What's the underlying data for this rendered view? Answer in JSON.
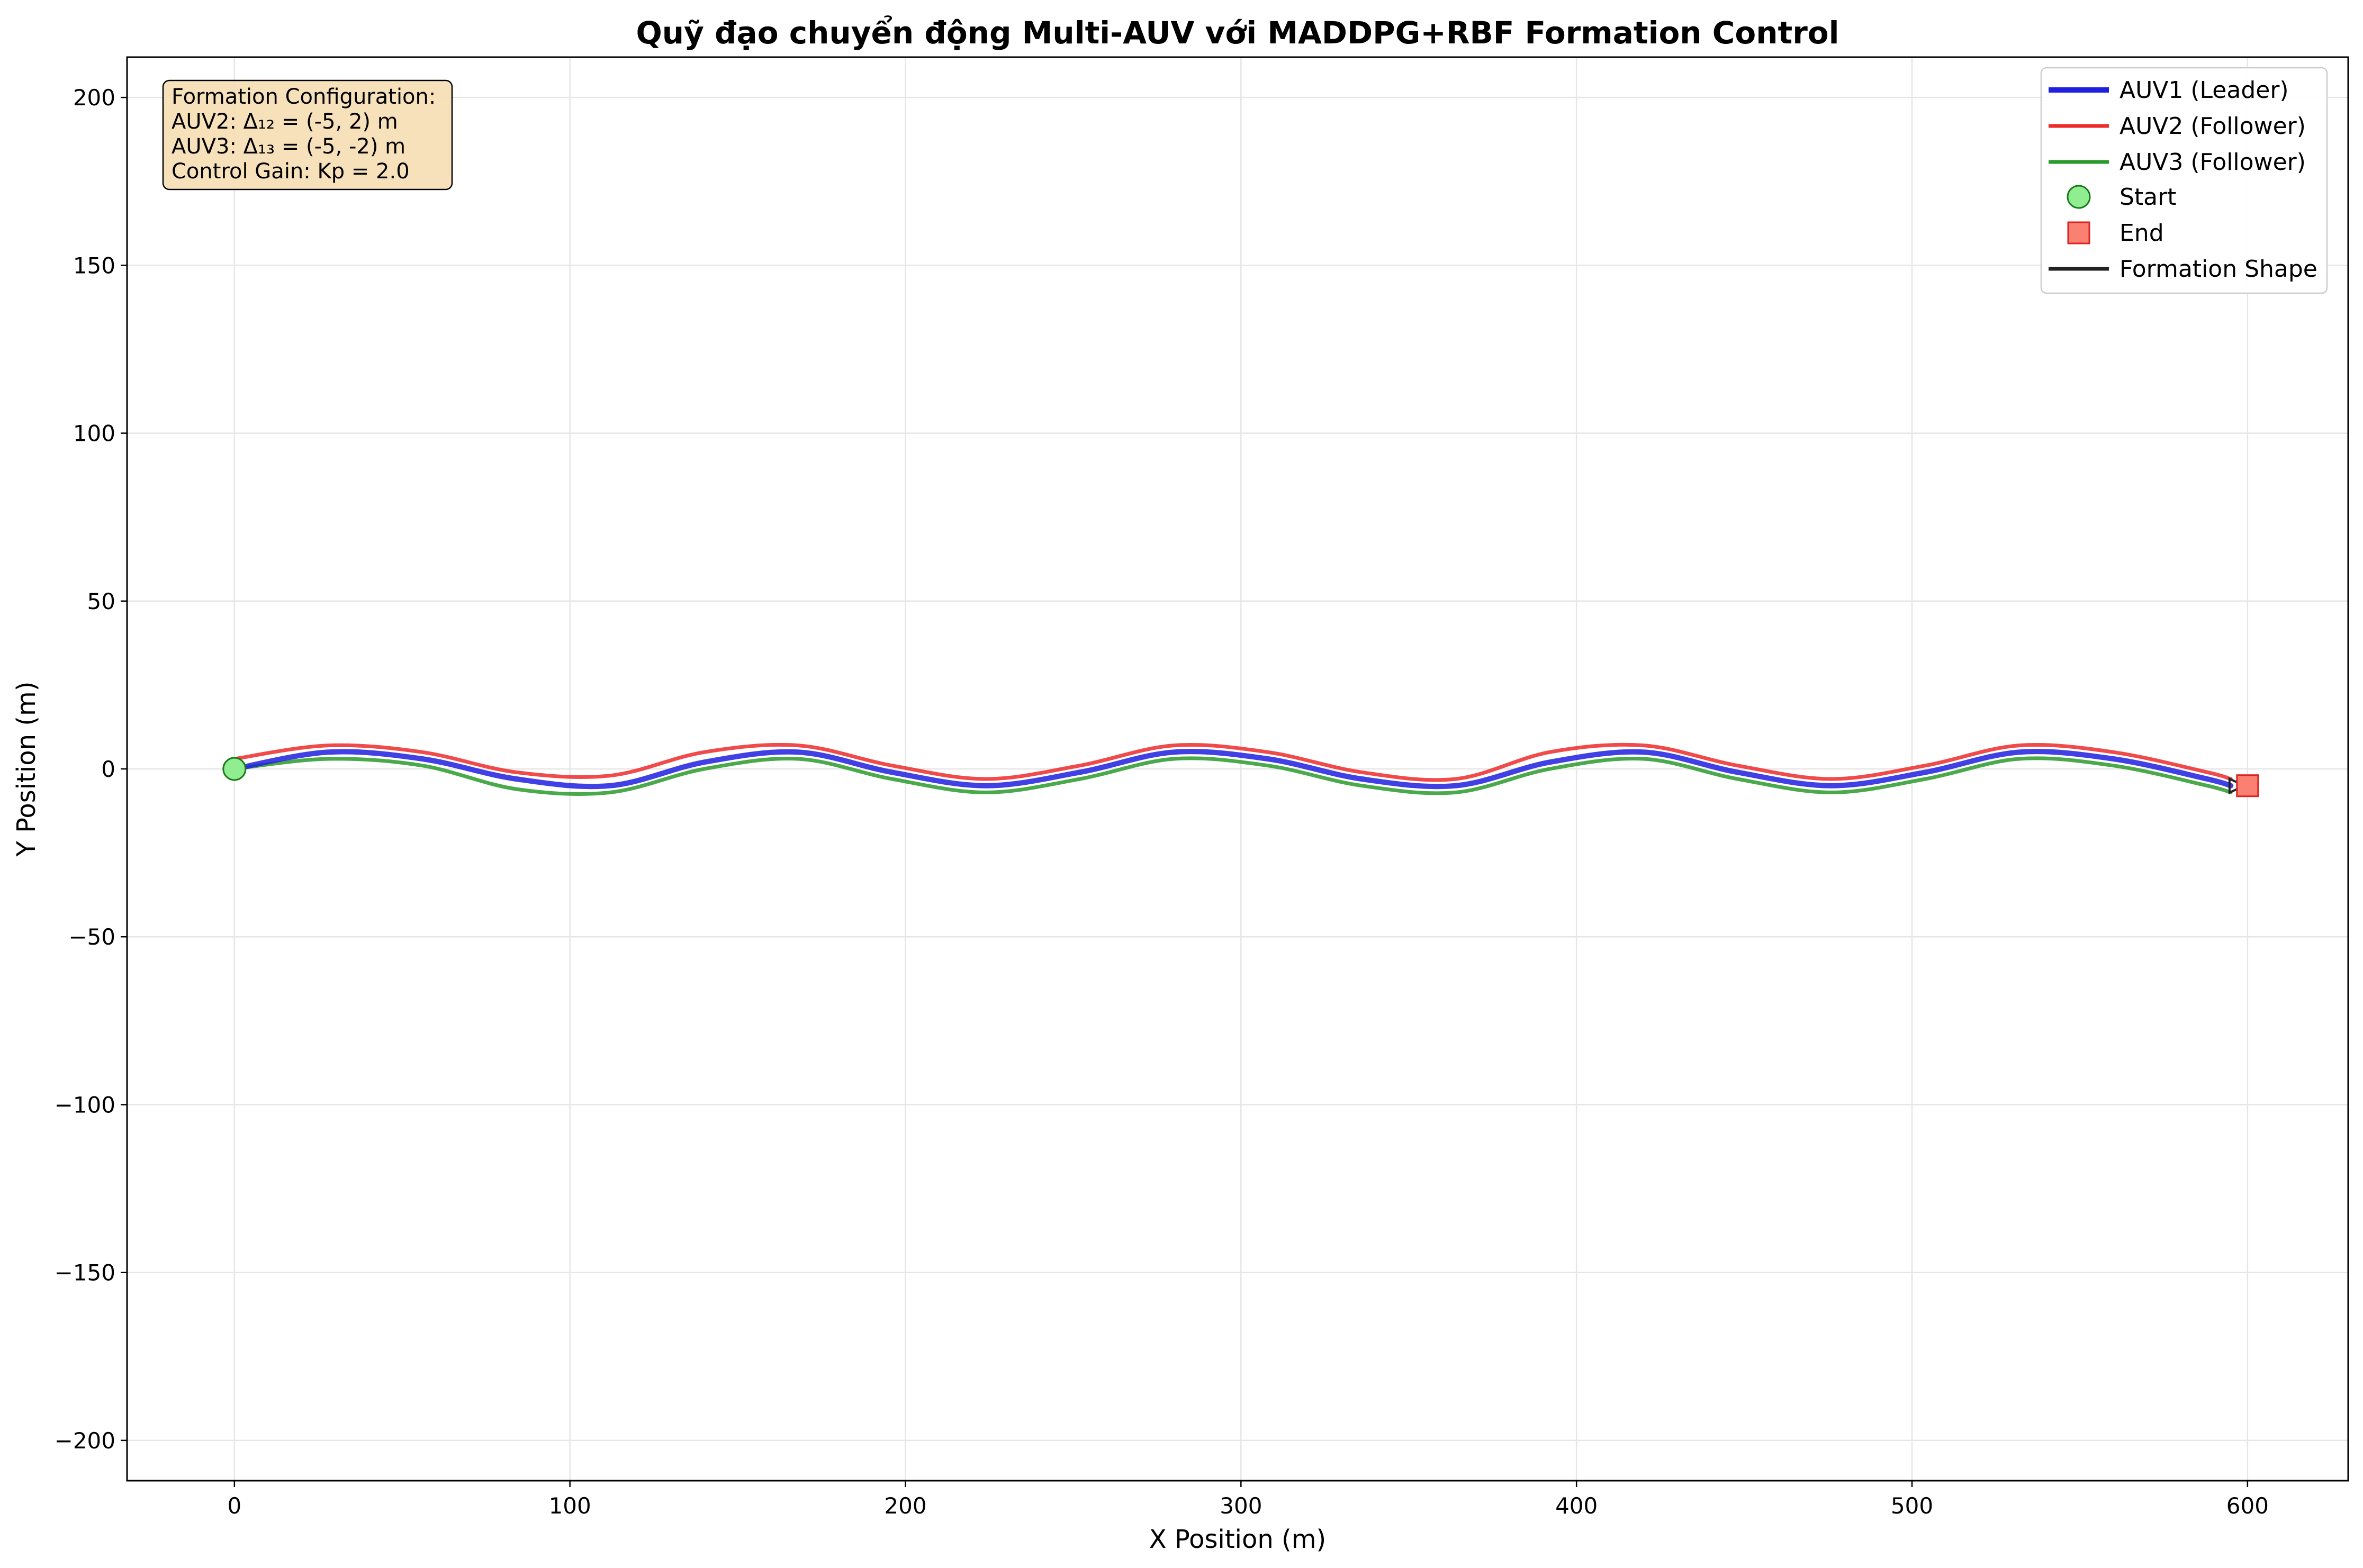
{
  "chart_data": {
    "type": "line",
    "title": "Quỹ đạo chuyển động Multi-AUV với MADDPG+RBF Formation Control",
    "xlabel": "X Position (m)",
    "ylabel": "Y Position (m)",
    "xlim": [
      -32,
      630
    ],
    "ylim": [
      -212,
      212
    ],
    "xticks": [
      0,
      100,
      200,
      300,
      400,
      500,
      600
    ],
    "yticks": [
      -200,
      -150,
      -100,
      -50,
      0,
      50,
      100,
      150,
      200
    ],
    "xtick_labels": [
      "0",
      "100",
      "200",
      "300",
      "400",
      "500",
      "600"
    ],
    "ytick_labels": [
      "−200",
      "−150",
      "−100",
      "−50",
      "0",
      "50",
      "100",
      "150",
      "200"
    ],
    "grid": true,
    "legend_position": "top-right",
    "colors": {
      "leader": "#1f1fdf",
      "follower2": "#ee2a2a",
      "follower3": "#2a9a2a",
      "start_fill": "#90ee90",
      "start_edge": "#1a7a1a",
      "end_fill": "#fa8072",
      "end_edge": "#dd2222",
      "formation": "#222222"
    },
    "series": [
      {
        "name": "AUV1 (Leader)",
        "x": [
          0,
          28,
          56,
          84,
          112,
          140,
          168,
          196,
          224,
          252,
          280,
          308,
          336,
          364,
          392,
          420,
          448,
          476,
          504,
          532,
          560,
          588,
          595
        ],
        "y": [
          0,
          5,
          3,
          -3,
          -5,
          2,
          5,
          -1,
          -5,
          -1,
          5,
          3,
          -3,
          -5,
          2,
          5,
          -1,
          -5,
          -1,
          5,
          3,
          -3,
          -5
        ]
      },
      {
        "name": "AUV2 (Follower)",
        "x": [
          0,
          28,
          56,
          84,
          112,
          140,
          168,
          196,
          224,
          252,
          280,
          308,
          336,
          364,
          392,
          420,
          448,
          476,
          504,
          532,
          560,
          588,
          595
        ],
        "y": [
          3,
          7,
          5,
          -1,
          -2,
          5,
          7,
          1,
          -3,
          1,
          7,
          5,
          -1,
          -3,
          5,
          7,
          1,
          -3,
          1,
          7,
          5,
          -1,
          -3
        ]
      },
      {
        "name": "AUV3 (Follower)",
        "x": [
          0,
          28,
          56,
          84,
          112,
          140,
          168,
          196,
          224,
          252,
          280,
          308,
          336,
          364,
          392,
          420,
          448,
          476,
          504,
          532,
          560,
          588,
          595
        ],
        "y": [
          0,
          3,
          1,
          -6,
          -7,
          0,
          3,
          -3,
          -7,
          -3,
          3,
          1,
          -5,
          -7,
          0,
          3,
          -3,
          -7,
          -3,
          3,
          1,
          -5,
          -7
        ]
      }
    ],
    "markers": {
      "start": {
        "label": "Start",
        "x": 0,
        "y": 0
      },
      "end": {
        "label": "End",
        "x": 600,
        "y": -5
      }
    },
    "formation_label": "Formation Shape",
    "info_box": [
      "Formation Configuration:",
      "AUV2: Δ₁₂ = (-5, 2) m",
      "AUV3: Δ₁₃ = (-5, -2) m",
      "Control Gain: Kp = 2.0"
    ]
  }
}
